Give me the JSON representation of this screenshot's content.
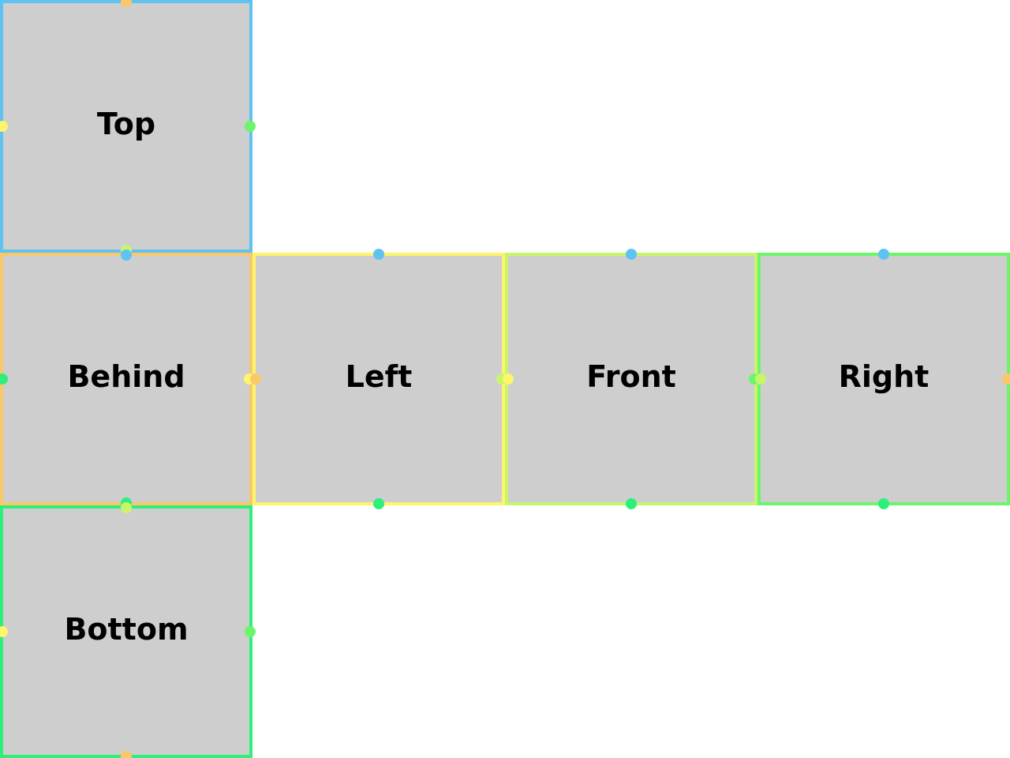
{
  "colors": {
    "top": "#5ec3f2",
    "behind": "#f8c86a",
    "left": "#fdf56a",
    "front": "#c8f56a",
    "right": "#6cf56a",
    "bottom": "#2cf07a",
    "face_fill": "#cecece"
  },
  "faces": [
    {
      "id": "top",
      "label": "Top"
    },
    {
      "id": "behind",
      "label": "Behind"
    },
    {
      "id": "left",
      "label": "Left"
    },
    {
      "id": "front",
      "label": "Front"
    },
    {
      "id": "right",
      "label": "Right"
    },
    {
      "id": "bottom",
      "label": "Bottom"
    }
  ]
}
